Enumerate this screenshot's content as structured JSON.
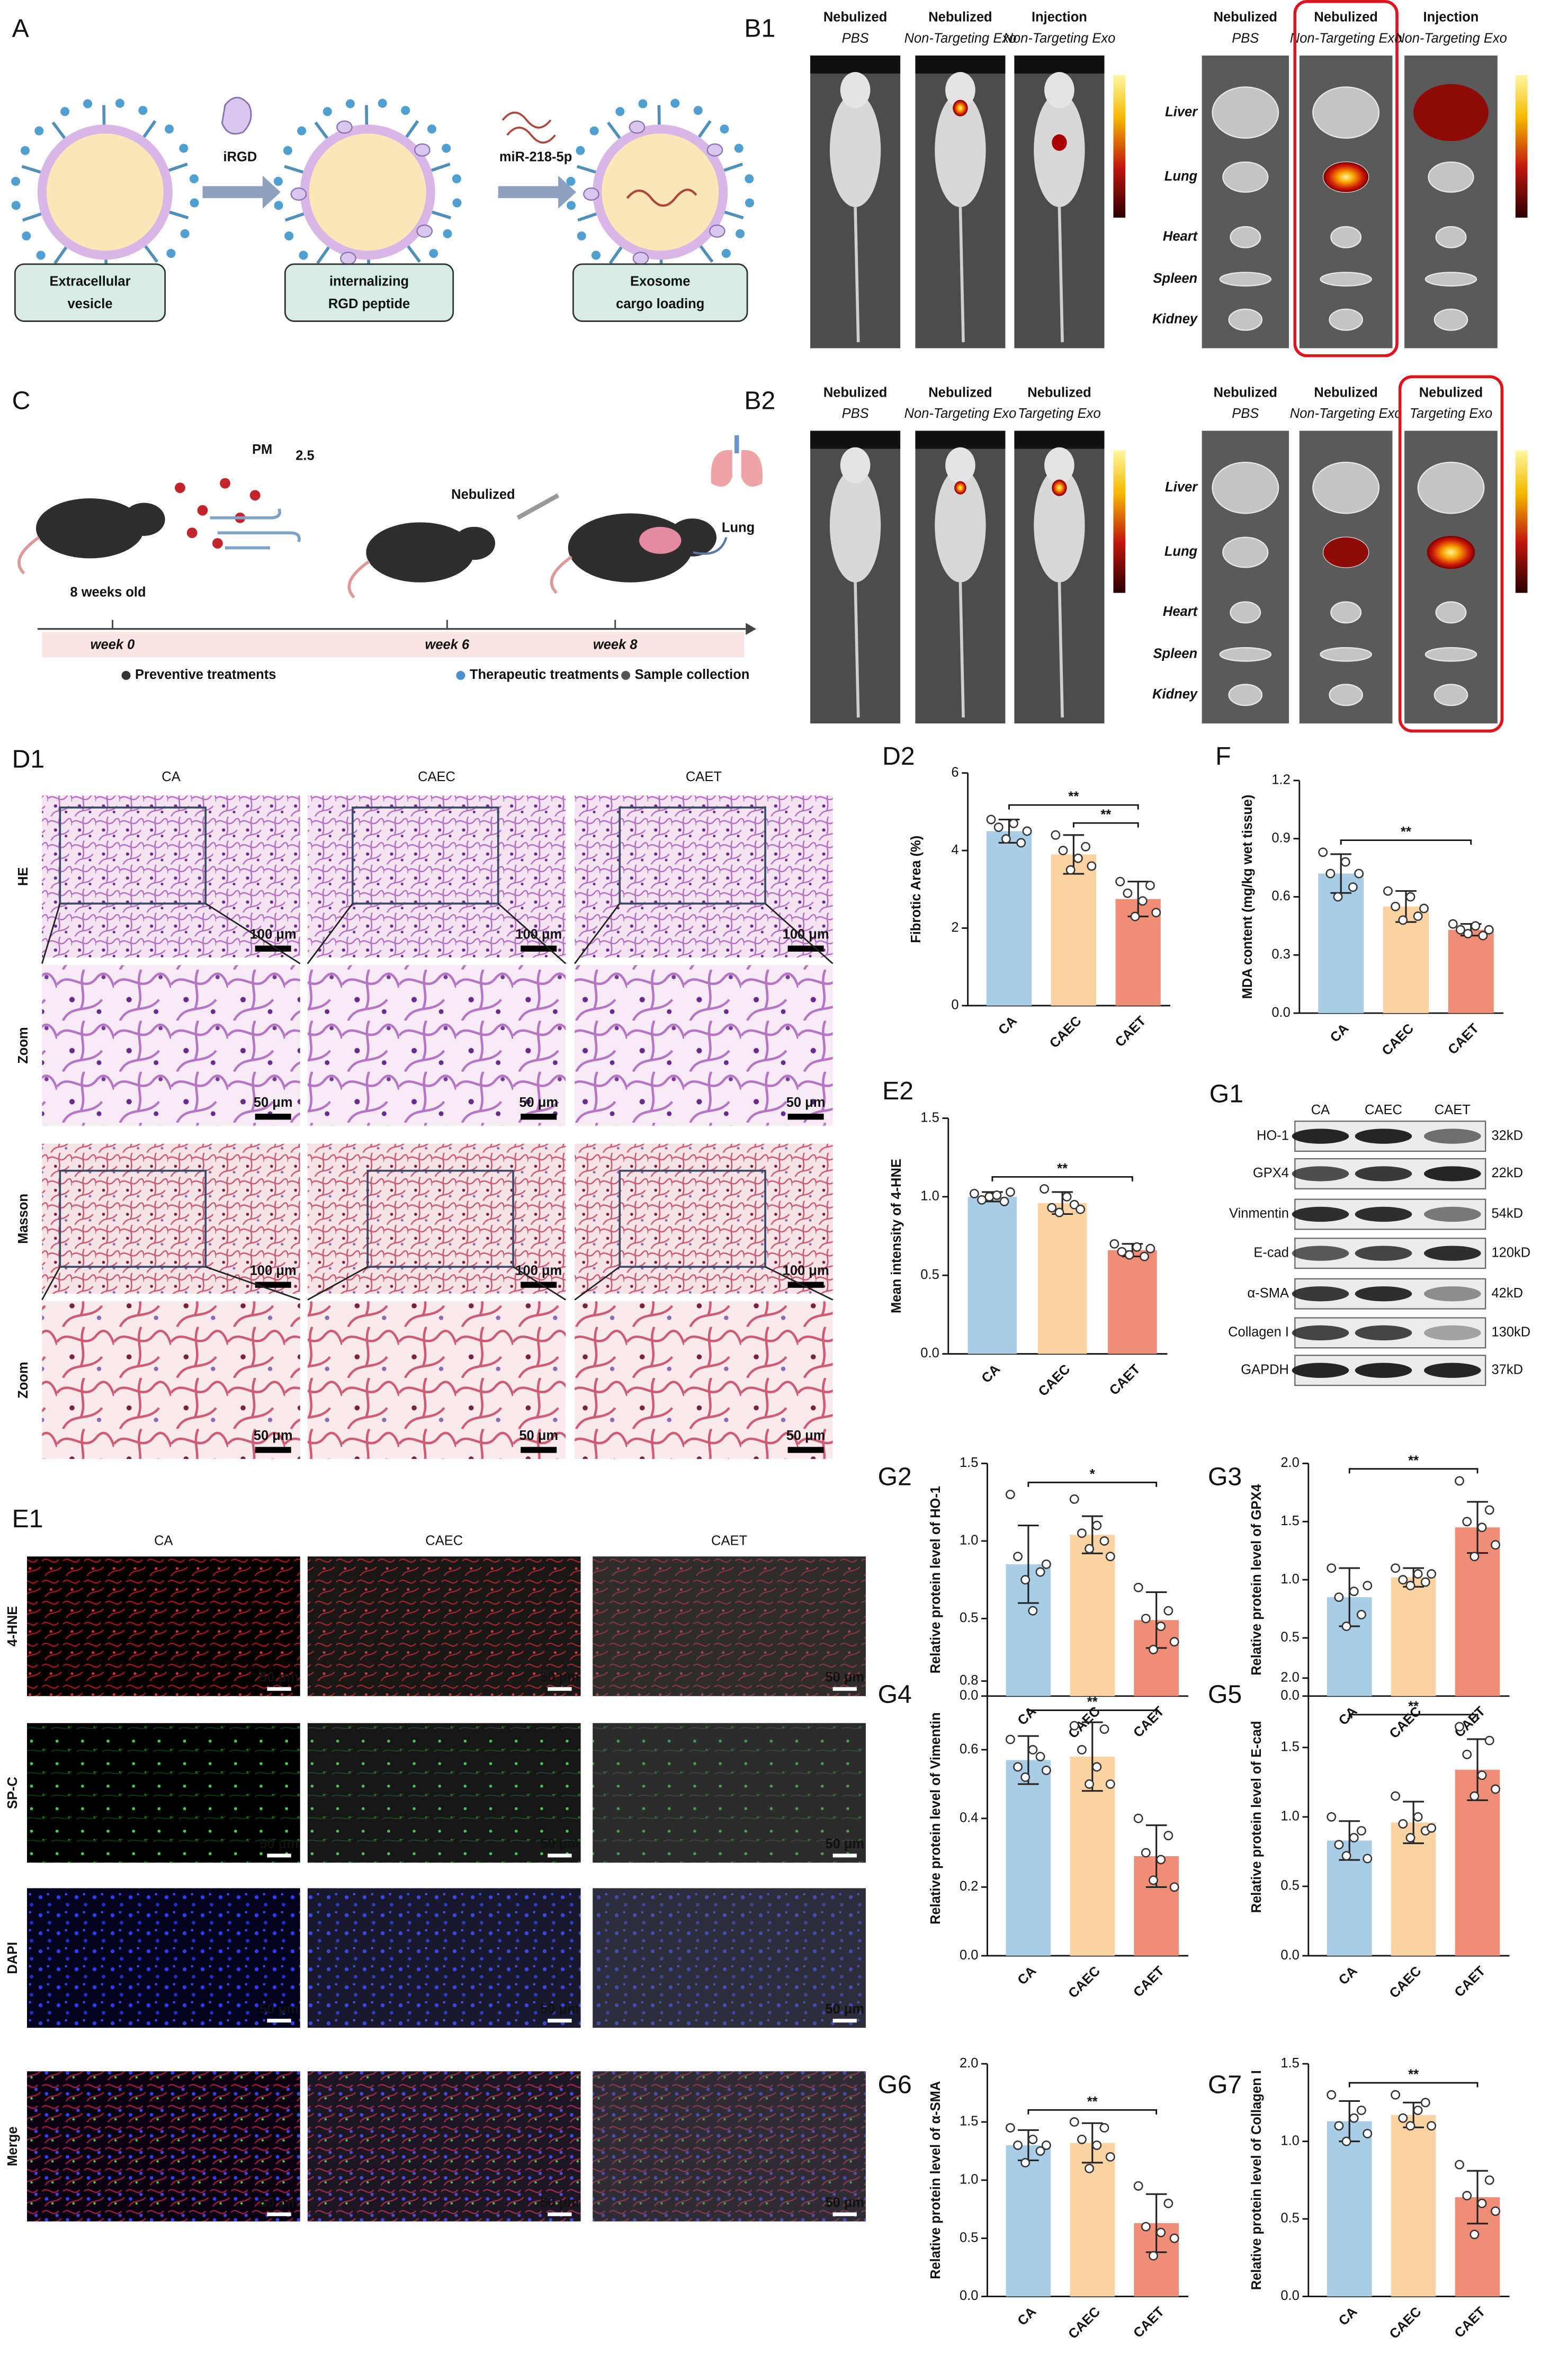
{
  "panel_labels": {
    "a": "A",
    "b1": "B1",
    "c": "C",
    "b2": "B2",
    "d1": "D1",
    "g1": "G1",
    "e1": "E1"
  },
  "schematic": {
    "reagents": [
      "iRGD",
      "miR-218-5p"
    ],
    "stages": [
      [
        "Extracellular",
        "vesicle"
      ],
      [
        "internalizing",
        "RGD peptide"
      ],
      [
        "Exosome",
        "cargo loading"
      ]
    ]
  },
  "organs": [
    "Liver",
    "Lung",
    "Heart",
    "Spleen",
    "Kidney"
  ],
  "imaging": [
    {
      "mice": [
        {
          "route": "Nebulized",
          "group": "PBS"
        },
        {
          "route": "Nebulized",
          "group": "Non-Targeting Exo"
        },
        {
          "route": "Injection",
          "group": "Non-Targeting Exo"
        }
      ],
      "organ_groups": [
        {
          "route": "Nebulized",
          "group": "PBS"
        },
        {
          "route": "Nebulized",
          "group": "Non-Targeting Exo"
        },
        {
          "route": "Injection",
          "group": "Non-Targeting Exo"
        }
      ]
    },
    {
      "mice": [
        {
          "route": "Nebulized",
          "group": "PBS"
        },
        {
          "route": "Nebulized",
          "group": "Non-Targeting Exo"
        },
        {
          "route": "Nebulized",
          "group": "Targeting Exo"
        }
      ],
      "organ_groups": [
        {
          "route": "Nebulized",
          "group": "PBS"
        },
        {
          "route": "Nebulized",
          "group": "Non-Targeting Exo"
        },
        {
          "route": "Nebulized",
          "group": "Targeting Exo"
        }
      ]
    }
  ],
  "timeline": {
    "pm": "PM",
    "pm_sub": "2.5",
    "age": "8 weeks old",
    "route": "Nebulized",
    "organ": "Lung",
    "weeks": [
      "week 0",
      "week 6",
      "week 8"
    ],
    "legend": [
      "Preventive treatments",
      "Therapeutic treatments",
      "Sample collection"
    ]
  },
  "histology": {
    "groups": [
      "CA",
      "CAEC",
      "CAET"
    ],
    "rows": [
      "HE",
      "Zoom",
      "Masson",
      "Zoom"
    ],
    "scale_bars": [
      "100 μm",
      "50 μm"
    ]
  },
  "immunofluorescence": {
    "groups": [
      "CA",
      "CAEC",
      "CAET"
    ],
    "rows": [
      "4-HNE",
      "SP-C",
      "DAPI",
      "Merge"
    ],
    "scale_bar": "50 μm"
  },
  "western_blot": {
    "groups": [
      "CA",
      "CAEC",
      "CAET"
    ],
    "proteins": [
      "HO-1",
      "GPX4",
      "Vinmentin",
      "E-cad",
      "α-SMA",
      "Collagen I",
      "GAPDH"
    ],
    "sizes": [
      "32kD",
      "22kD",
      "54kD",
      "120kD",
      "42kD",
      "130kD",
      "37kD"
    ]
  },
  "chart_data": [
    {
      "type": "bar",
      "panel": "D2",
      "ylabel": "Fibrotic Area (%)",
      "categories": [
        "CA",
        "CAEC",
        "CAET"
      ],
      "colors": [
        "#a9cde6",
        "#fbd3a2",
        "#ef8d77"
      ],
      "values": [
        4.5,
        3.9,
        2.75
      ],
      "errors": [
        0.3,
        0.5,
        0.45
      ],
      "points": [
        [
          4.8,
          4.6,
          4.3,
          4.7,
          4.2,
          4.5
        ],
        [
          4.4,
          4.0,
          3.5,
          3.8,
          4.1,
          3.6
        ],
        [
          3.2,
          2.9,
          2.3,
          2.7,
          3.1,
          2.4
        ]
      ],
      "ylim": [
        0,
        6
      ],
      "yticks": [
        0,
        2,
        4,
        6
      ],
      "significance": [
        {
          "pair": [
            "CA",
            "CAET"
          ],
          "label": "**"
        },
        {
          "pair": [
            "CAEC",
            "CAET"
          ],
          "label": "**"
        }
      ]
    },
    {
      "type": "bar",
      "panel": "F",
      "ylabel": "MDA content (mg/kg wet tissue)",
      "categories": [
        "CA",
        "CAEC",
        "CAET"
      ],
      "colors": [
        "#a9cde6",
        "#fbd3a2",
        "#ef8d77"
      ],
      "values": [
        0.72,
        0.55,
        0.43
      ],
      "errors": [
        0.1,
        0.08,
        0.03
      ],
      "points": [
        [
          0.83,
          0.72,
          0.6,
          0.78,
          0.65,
          0.72
        ],
        [
          0.63,
          0.55,
          0.48,
          0.6,
          0.5,
          0.54
        ],
        [
          0.46,
          0.43,
          0.41,
          0.45,
          0.4,
          0.43
        ]
      ],
      "ylim": [
        0,
        1.2
      ],
      "yticks": [
        {
          "value": 0,
          "label": "0.0"
        },
        0.3,
        0.6,
        0.9,
        1.2
      ],
      "significance": [
        {
          "pair": [
            "CA",
            "CAET"
          ],
          "label": "**"
        }
      ]
    },
    {
      "type": "bar",
      "panel": "E2",
      "ylabel": "Mean intensity of 4-HNE",
      "categories": [
        "CA",
        "CAEC",
        "CAET"
      ],
      "colors": [
        "#a9cde6",
        "#fbd3a2",
        "#ef8d77"
      ],
      "values": [
        1.0,
        0.96,
        0.66
      ],
      "errors": [
        0.03,
        0.07,
        0.04
      ],
      "points": [
        [
          1.02,
          0.98,
          1.0,
          1.01,
          0.97,
          1.03
        ],
        [
          1.05,
          0.93,
          0.9,
          1.0,
          0.95,
          0.92
        ],
        [
          0.7,
          0.65,
          0.63,
          0.68,
          0.62,
          0.67
        ]
      ],
      "ylim": [
        0,
        1.5
      ],
      "yticks": [
        {
          "value": 0,
          "label": "0.0"
        },
        0.5,
        {
          "value": 1,
          "label": "1.0"
        },
        1.5
      ],
      "significance": [
        {
          "pair": [
            "CA",
            "CAET"
          ],
          "label": "**"
        }
      ]
    },
    {
      "type": "bar",
      "panel": "G2",
      "ylabel": "Relative protein level of HO-1",
      "categories": [
        "CA",
        "CAEC",
        "CAET"
      ],
      "colors": [
        "#a9cde6",
        "#fbd3a2",
        "#ef8d77"
      ],
      "values": [
        0.85,
        1.04,
        0.49
      ],
      "errors": [
        0.25,
        0.12,
        0.18
      ],
      "points": [
        [
          1.3,
          0.9,
          0.75,
          0.55,
          0.8,
          0.85
        ],
        [
          1.27,
          1.05,
          0.95,
          1.1,
          1.0,
          0.9
        ],
        [
          0.7,
          0.5,
          0.3,
          0.45,
          0.55,
          0.35
        ]
      ],
      "ylim": [
        0,
        1.5
      ],
      "yticks": [
        {
          "value": 0,
          "label": "0.0"
        },
        0.5,
        {
          "value": 1,
          "label": "1.0"
        },
        1.5
      ],
      "significance": [
        {
          "pair": [
            "CA",
            "CAET"
          ],
          "label": "*"
        }
      ]
    },
    {
      "type": "bar",
      "panel": "G3",
      "ylabel": "Relative protein level of GPX4",
      "categories": [
        "CA",
        "CAEC",
        "CAET"
      ],
      "colors": [
        "#a9cde6",
        "#fbd3a2",
        "#ef8d77"
      ],
      "values": [
        0.85,
        1.02,
        1.45
      ],
      "errors": [
        0.25,
        0.08,
        0.22
      ],
      "points": [
        [
          1.1,
          0.85,
          0.6,
          0.9,
          0.7,
          0.95
        ],
        [
          1.1,
          1.0,
          0.95,
          1.05,
          0.98,
          1.05
        ],
        [
          1.85,
          1.5,
          1.2,
          1.45,
          1.6,
          1.3
        ]
      ],
      "ylim": [
        0,
        2
      ],
      "yticks": [
        {
          "value": 0,
          "label": "0.0"
        },
        0.5,
        {
          "value": 1,
          "label": "1.0"
        },
        1.5,
        {
          "value": 2,
          "label": "2.0"
        }
      ],
      "significance": [
        {
          "pair": [
            "CA",
            "CAET"
          ],
          "label": "**"
        }
      ]
    },
    {
      "type": "bar",
      "panel": "G4",
      "ylabel": "Relative protein level of Vimentin",
      "categories": [
        "CA",
        "CAEC",
        "CAET"
      ],
      "colors": [
        "#a9cde6",
        "#fbd3a2",
        "#ef8d77"
      ],
      "values": [
        0.57,
        0.58,
        0.29
      ],
      "errors": [
        0.07,
        0.1,
        0.09
      ],
      "points": [
        [
          0.63,
          0.55,
          0.52,
          0.6,
          0.58,
          0.54
        ],
        [
          0.67,
          0.6,
          0.5,
          0.55,
          0.66,
          0.5
        ],
        [
          0.4,
          0.3,
          0.22,
          0.28,
          0.35,
          0.2
        ]
      ],
      "ylim": [
        0,
        0.8
      ],
      "yticks": [
        {
          "value": 0,
          "label": "0.0"
        },
        0.2,
        0.4,
        0.6,
        0.8
      ],
      "significance": [
        {
          "pair": [
            "CA",
            "CAET"
          ],
          "label": "**"
        }
      ]
    },
    {
      "type": "bar",
      "panel": "G5",
      "ylabel": "Relative protein level of E-cad",
      "categories": [
        "CA",
        "CAEC",
        "CAET"
      ],
      "colors": [
        "#a9cde6",
        "#fbd3a2",
        "#ef8d77"
      ],
      "values": [
        0.83,
        0.96,
        1.34
      ],
      "errors": [
        0.14,
        0.15,
        0.22
      ],
      "points": [
        [
          1.0,
          0.8,
          0.72,
          0.85,
          0.9,
          0.7
        ],
        [
          1.15,
          0.95,
          0.85,
          1.0,
          0.9,
          0.92
        ],
        [
          1.65,
          1.45,
          1.15,
          1.3,
          1.55,
          1.2
        ]
      ],
      "ylim": [
        0,
        2
      ],
      "yticks": [
        {
          "value": 0,
          "label": "0.0"
        },
        0.5,
        {
          "value": 1,
          "label": "1.0"
        },
        1.5,
        {
          "value": 2,
          "label": "2.0"
        }
      ],
      "significance": [
        {
          "pair": [
            "CA",
            "CAET"
          ],
          "label": "**"
        }
      ]
    },
    {
      "type": "bar",
      "panel": "G6",
      "ylabel": "Relative protein level of α-SMA",
      "categories": [
        "CA",
        "CAEC",
        "CAET"
      ],
      "colors": [
        "#a9cde6",
        "#fbd3a2",
        "#ef8d77"
      ],
      "values": [
        1.3,
        1.32,
        0.63
      ],
      "errors": [
        0.13,
        0.17,
        0.25
      ],
      "points": [
        [
          1.45,
          1.3,
          1.15,
          1.35,
          1.25,
          1.3
        ],
        [
          1.5,
          1.35,
          1.1,
          1.3,
          1.45,
          1.2
        ],
        [
          0.95,
          0.6,
          0.35,
          0.55,
          0.8,
          0.5
        ]
      ],
      "ylim": [
        0,
        2
      ],
      "yticks": [
        {
          "value": 0,
          "label": "0.0"
        },
        0.5,
        {
          "value": 1,
          "label": "1.0"
        },
        1.5,
        {
          "value": 2,
          "label": "2.0"
        }
      ],
      "significance": [
        {
          "pair": [
            "CA",
            "CAET"
          ],
          "label": "**"
        }
      ]
    },
    {
      "type": "bar",
      "panel": "G7",
      "ylabel": "Relative protein level of Collagen I",
      "categories": [
        "CA",
        "CAEC",
        "CAET"
      ],
      "colors": [
        "#a9cde6",
        "#fbd3a2",
        "#ef8d77"
      ],
      "values": [
        1.13,
        1.17,
        0.64
      ],
      "errors": [
        0.13,
        0.08,
        0.17
      ],
      "points": [
        [
          1.3,
          1.1,
          1.0,
          1.15,
          1.2,
          1.05
        ],
        [
          1.3,
          1.15,
          1.1,
          1.2,
          1.25,
          1.1
        ],
        [
          0.85,
          0.65,
          0.4,
          0.6,
          0.75,
          0.55
        ]
      ],
      "ylim": [
        0,
        1.5
      ],
      "yticks": [
        {
          "value": 0,
          "label": "0.0"
        },
        0.5,
        {
          "value": 1,
          "label": "1.0"
        },
        1.5
      ],
      "significance": [
        {
          "pair": [
            "CA",
            "CAET"
          ],
          "label": "**"
        }
      ]
    }
  ]
}
